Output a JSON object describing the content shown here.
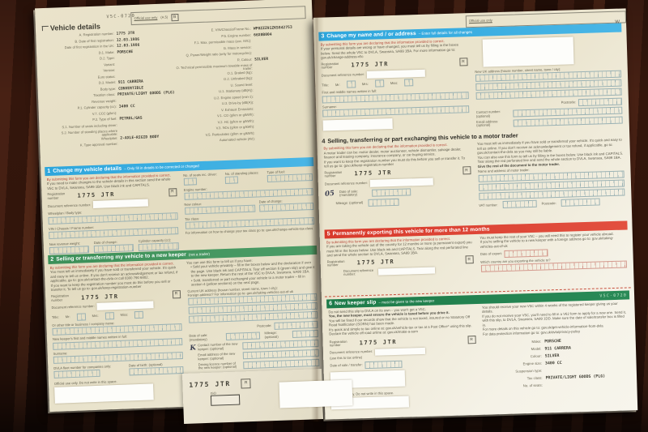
{
  "doc": {
    "form_code": "V5C-0720",
    "official_use": "Official use only",
    "official_code": "(A.5)",
    "official_letter": "B",
    "w_mark": "W"
  },
  "vd": {
    "title": "Vehicle details",
    "col1": [
      {
        "label": "A. Registration number:",
        "value": "1775 JTR"
      },
      {
        "label": "B. Date of first registration:",
        "value": "12.03.1986"
      },
      {
        "label": "Date of first registration in the UK:",
        "value": "12.03.1986"
      },
      {
        "label": "D.1. Make:",
        "value": "PORSCHE"
      },
      {
        "label": "D.2. Type:",
        "value": ""
      },
      {
        "label": "Variant:",
        "value": ""
      },
      {
        "label": "Version:",
        "value": ""
      },
      {
        "label": "Euro status:",
        "value": ""
      },
      {
        "label": "D.3. Model:",
        "value": "911 CARRERA"
      },
      {
        "label": "Body type:",
        "value": "CONVERTIBLE"
      },
      {
        "label": "Taxation class:",
        "value": "PRIVATE/LIGHT GOODS (PLG)"
      },
      {
        "label": "Revenue weight:",
        "value": ""
      },
      {
        "label": "P.1. Cylinder capacity (cc):",
        "value": "3400 CC"
      },
      {
        "label": "V.7. CO2 (g/km):",
        "value": ""
      },
      {
        "label": "P.3. Type of fuel:",
        "value": "PETROL/GAS"
      },
      {
        "label": "S.1. Number of seats including driver:",
        "value": ""
      },
      {
        "label": "S.2. Number of standing places where applicable:",
        "value": ""
      },
      {
        "label": "Wheelplan:",
        "value": "2-AXLE-RIGID BODY"
      },
      {
        "label": "K. Type approval number:",
        "value": ""
      }
    ],
    "col2": [
      {
        "label": "E. VIN/Chassis/Frame No.:",
        "value": "WP0ZZZ91ZKS842753"
      },
      {
        "label": "P.5. Engine number:",
        "value": "66X0B004"
      },
      {
        "label": "F.1. Max. permissible mass (exc. M/C):",
        "value": ""
      },
      {
        "label": "G. Mass in service:",
        "value": ""
      },
      {
        "label": "Q. Power/Weight ratio (only for motorcycles):",
        "value": ""
      },
      {
        "label": "R. Colour:",
        "value": "SILVER"
      },
      {
        "label": "O. Technical permissible maximum towable mass of trailer:",
        "value": ""
      },
      {
        "label": "O.1. Braked (kg):",
        "value": ""
      },
      {
        "label": "O.2. Unbraked (kg):",
        "value": ""
      },
      {
        "label": "U. Sound level:",
        "value": ""
      },
      {
        "label": "U.1. Stationary (dB(A)):",
        "value": ""
      },
      {
        "label": "U.2. Engine speed (min-1):",
        "value": ""
      },
      {
        "label": "U.3. Drive-by (dB(A)):",
        "value": ""
      },
      {
        "label": "V. Exhaust Emissions:",
        "value": ""
      },
      {
        "label": "V.1. CO (g/km or g/kWh):",
        "value": ""
      },
      {
        "label": "V.2. HC (g/km or g/kWh):",
        "value": ""
      },
      {
        "label": "V.3. NOx (g/km or g/kWh):",
        "value": ""
      },
      {
        "label": "V.5. Particulates (g/km or g/kWh):",
        "value": ""
      },
      {
        "label": "Automated vehicle (AV):",
        "value": ""
      }
    ]
  },
  "s1": {
    "num": "1",
    "title": "Change my vehicle details",
    "tail": "– Only fill in details to be corrected or changed",
    "decl": "By submitting this form you are declaring that the information provided is correct.",
    "intro": "If you need to make changes to the vehicle details in this section send the whole V5C to DVLA, Swansea, SA99 1BA. Use black ink and CAPITALS.",
    "reg_label": "Registration number",
    "reg": "1775 JTR",
    "r": "R",
    "docref": "Document reference number:",
    "wheelplan": "Wheelplan / Body type:",
    "vin": "VIN / Chassis / Frame number:",
    "weight": "New revenue weight:",
    "change": "Date of change:",
    "cyl": "Cylinder capacity (cc):",
    "seats": "No. of seats inc. driver:",
    "standing": "No. of standing places:",
    "fuel": "Type of fuel:",
    "engine": "Engine number:",
    "colour": "New colour:",
    "change2": "Date of change:",
    "tax": "Tax class:",
    "note": "For information on how to change your tax class go to: gov.uk/change-vehicle-tax-class"
  },
  "s2": {
    "num": "2",
    "title": "Selling or transferring my vehicle to a new keeper",
    "tail": "(not a trader)",
    "decl": "By submitting this form you are declaring that the information provided is correct.",
    "p1": "You must tell us immediately if you have sold or transferred your vehicle. It's quick and easy to tell us online. If you don't receive an acknowledgement or tax refund, if applicable, go to: gov.uk/contact-the-dvla or call 0300 790 6802.",
    "p2": "If you want to keep the registration number you must do this before you sell or transfer it. To tell us go to: gov.uk/keep-registration-number",
    "reg_label": "Registration number",
    "reg": "1775 JTR",
    "r": "R",
    "docref": "Document reference number:",
    "title_label": "Title:",
    "mr": "Mr:",
    "mrs": "Mrs:",
    "miss": "Miss:",
    "other": "Or other title or business / company name:",
    "names": "New keeper's first and middle names written in full:",
    "surname": "Surname:",
    "fleet": "DVLA fleet number for companies only:",
    "dob": "Date of birth: (optional)",
    "official": "Official use only. Do not write in this space.",
    "use_intro": "You can use this form to tell us if you have:",
    "b1": "Sold your vehicle privately – fill in the boxes below and the declaration if over the page. Use black ink and CAPITALS. Tear off section 6 (green slip) and give it to the new keeper. Return the rest of the V5C to DVLA, Swansea, SA99 1BA.",
    "b2": "Sold, transferred or part exchanged your vehicle to a motor trader – fill in section 4 (yellow sections) on the next page.",
    "addr": "Current UK address (house number, street name, town / city):",
    "addr_note": "Foreign address? For information go to: gov.uk/taking-vehicles-out-of-uk",
    "postcode": "Postcode:",
    "date_sale": "Date of sale: (mandatory)",
    "mileage": "Mileage: (optional)",
    "hand": "K",
    "contact": "Contact number of the new keeper: (optional)",
    "email": "Email address of the new keeper: (optional)",
    "licence": "Driving licence number of the new keeper: (optional)"
  },
  "slip_corner": {
    "reg": "1775 JTR",
    "r": "R",
    "iso": "ISO"
  },
  "s3": {
    "num": "3",
    "title": "Change my name and / or address",
    "tail": "– Enter full details for all changes",
    "decl": "By submitting this form you are declaring that the information provided is correct.",
    "intro": "If your personal details are wrong or have changed, you must tell us by filling in the boxes below. Send the whole V5C to DVLA, Swansea, SA99 1BA. For more information go to: gov.uk/change-address-v5c",
    "reg_label": "Registration number",
    "reg": "1775 JTR",
    "r": "R",
    "docref": "Document reference number:",
    "title_label": "Title:",
    "mr": "Mr:",
    "mrs": "Mrs:",
    "miss": "Miss:",
    "names": "First and middle names written in full:",
    "surname": "Surname:",
    "new_addr": "New UK address (house number, street name, town / city):",
    "postcode": "Postcode:",
    "contact": "Contact number: (optional)",
    "email": "Email address: (optional)"
  },
  "s4": {
    "num": "4",
    "title": "Selling, transferring or part exchanging this vehicle to a motor trader",
    "decl": "By submitting this form you are declaring that the information provided is correct.",
    "p1": "A motor trader can be: motor dealer, motor auctioneer, vehicle dismantler, salvage dealer, finance and leasing company, insurance company, or car buying service.",
    "p2": "If you want to keep the registration number you must do this before you sell or transfer it. To tell us go to: gov.uk/keep-registration-number",
    "reg_label": "Registration number",
    "reg": "1775 JTR",
    "r": "R",
    "docref": "Document reference number:",
    "hand": "05",
    "date_sale": "Date of sale: (mandatory)",
    "mileage": "Mileage: (optional)",
    "r1": "You must tell us immediately if you have sold or transferred your vehicle. It's quick and easy to tell us online. If you don't receive an acknowledgement or tax refund, if applicable, go to: gov.uk/contact-the-dvla as you may still be liable.",
    "r2": "You can also use this form to tell us by filling in the boxes below. Use black ink and CAPITALS. Tear along the red perforated line and send the whole section to DVLA, Swansea, SA99 1BA.",
    "r3": "Give the rest of the document to the motor trader.",
    "trader": "Name and address of motor trader:",
    "vat": "VAT number:",
    "postcode": "Postcode:"
  },
  "s5": {
    "num": "5",
    "title": "Permanently exporting this vehicle for more than 12 months",
    "decl": "By submitting this form you are declaring that the information provided is correct.",
    "p1": "If you are taking the vehicle out of the country for 12 months or more (a permanent export) you must fill in the boxes below. Use black ink and CAPITALS. Tear along the red perforated line and send the whole section to DVLA, Swansea, SA99 1BA.",
    "reg_label": "Registration number",
    "reg": "1775 JTR",
    "r": "R",
    "docref": "Document reference number:",
    "r1": "You must keep the rest of your V5C – you will need this to register your vehicle abroad.",
    "r2": "If you're selling the vehicle to a new keeper with a foreign address go to: gov.uk/taking-vehicles-out-of-uk",
    "date_export": "Date of export:",
    "country": "Which country are you exporting the vehicle to?"
  },
  "s6": {
    "num": "6",
    "title": "New keeper slip",
    "tail": "– must be given to the new keeper",
    "code": "V5C-0720",
    "l1": "Do not send this slip to DVLA on its own – you won't get a V5C.",
    "l2": "You, the new keeper, must ensure the vehicle is taxed before you drive it.",
    "l3": "You will be fined if our records show that the vehicle is not taxed, insured or no Statutory Off Road Notification (SORN) has been made.",
    "l4": "It's quick and simple to tax online at: gov.uk/vehicle-tax or tax at a Post Office* using this slip.",
    "l5": "Declare the vehicle off road online at: gov.uk/make-a-sorn",
    "reg_label": "Registration number",
    "reg": "1775 JTR",
    "r": "R",
    "docref": "Document reference number:",
    "docref_note": "(use this to tax online)",
    "date": "Date of sale / transfer:",
    "official": "Official use only. Do not write in this space.",
    "r1": "You should receive your new V5C within 4 weeks of the registered keeper giving us your details.",
    "r2": "If you do not receive your V5C, you'll need to fill in a V62 form to apply for a new one. Send it, with this slip, to DVLA, Swansea, SA99 1DD. Make sure the date of sale/transfer box is filled in.",
    "r3": "For more details on this vehicle go to: gov.uk/get-vehicle-information-from-dvla",
    "r4": "For data protection information go to: gov.uk/dvla/privacy-policy",
    "summary": [
      {
        "label": "Make:",
        "value": "PORSCHE"
      },
      {
        "label": "Model:",
        "value": "911 CARRERA"
      },
      {
        "label": "Colour:",
        "value": "SILVER"
      },
      {
        "label": "Engine size:",
        "value": "3400 CC"
      },
      {
        "label": "Suspension type:",
        "value": ""
      },
      {
        "label": "Tax class:",
        "value": "PRIVATE/LIGHT GOODS (PLG)"
      },
      {
        "label": "No. of seats:",
        "value": ""
      }
    ]
  }
}
